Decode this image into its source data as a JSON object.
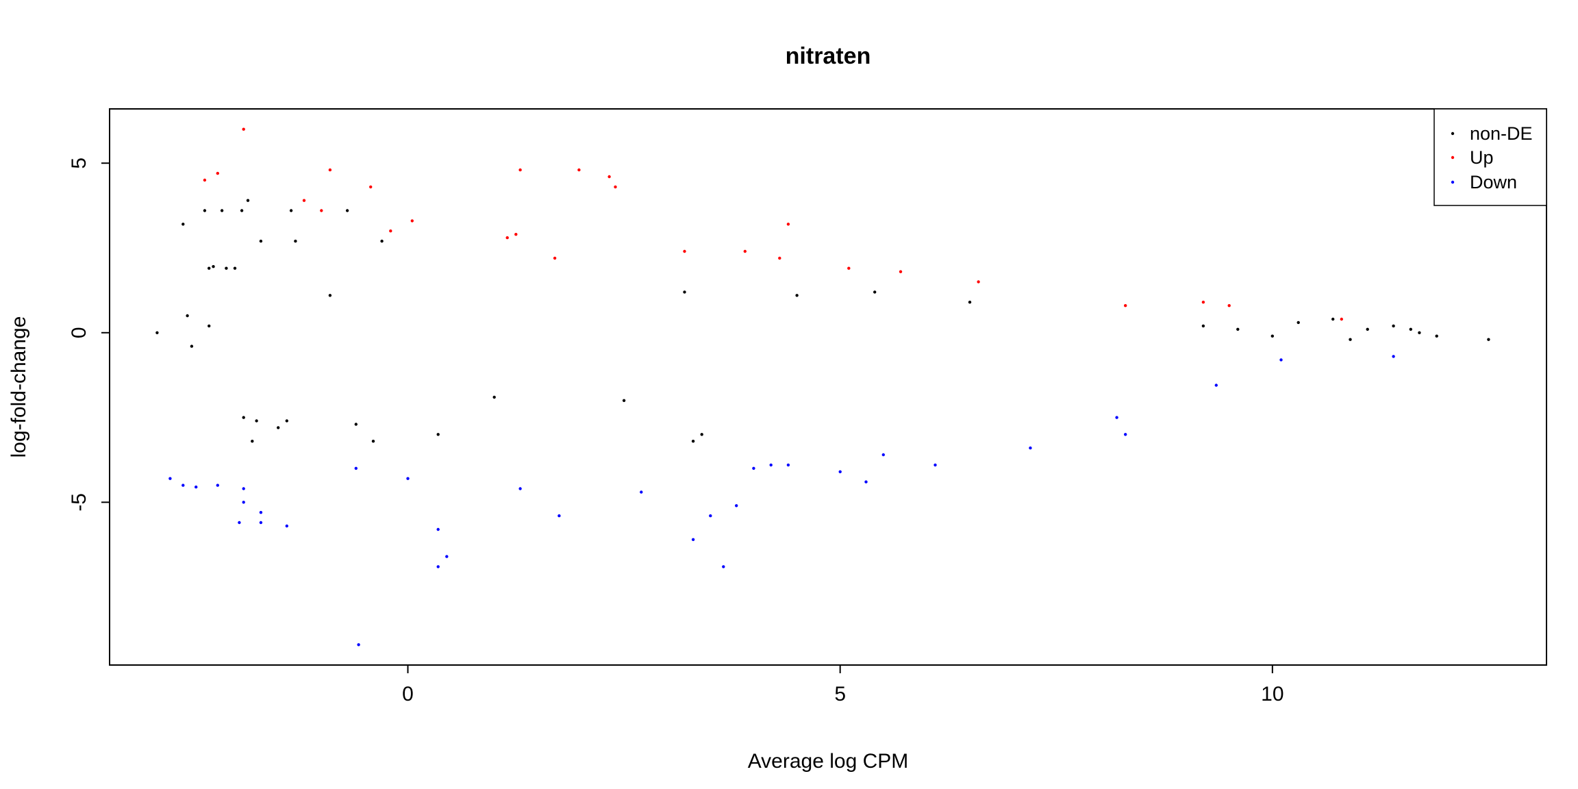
{
  "chart_data": {
    "type": "scatter",
    "title": "nitraten",
    "xlabel": "Average log CPM",
    "ylabel": "log-fold-change",
    "xlim": [
      -3.45,
      13.17
    ],
    "ylim": [
      -9.8,
      6.6
    ],
    "xticks": [
      0,
      5,
      10
    ],
    "yticks": [
      5,
      0,
      -5
    ],
    "xtick_labels": [
      "0",
      "5",
      "10"
    ],
    "ytick_labels": [
      "5",
      "0",
      "-5"
    ],
    "grid": false,
    "legend_position": "top-right",
    "series": [
      {
        "name": "non-DE",
        "color": "#000000",
        "points": [
          [
            -2.9,
            0.0
          ],
          [
            -2.6,
            3.2
          ],
          [
            -2.55,
            0.5
          ],
          [
            -2.5,
            -0.4
          ],
          [
            -2.3,
            0.2
          ],
          [
            -2.35,
            3.6
          ],
          [
            -2.3,
            1.9
          ],
          [
            -2.25,
            1.95
          ],
          [
            -2.15,
            3.6
          ],
          [
            -2.1,
            1.9
          ],
          [
            -2.0,
            1.9
          ],
          [
            -1.92,
            3.6
          ],
          [
            -1.85,
            3.9
          ],
          [
            -1.9,
            -2.5
          ],
          [
            -1.75,
            -2.6
          ],
          [
            -1.7,
            2.7
          ],
          [
            -1.8,
            -3.2
          ],
          [
            -1.5,
            -2.8
          ],
          [
            -1.35,
            3.6
          ],
          [
            -1.3,
            2.7
          ],
          [
            -1.4,
            -2.6
          ],
          [
            -0.9,
            1.1
          ],
          [
            -0.7,
            3.6
          ],
          [
            -0.6,
            -2.7
          ],
          [
            -0.4,
            -3.2
          ],
          [
            -0.3,
            2.7
          ],
          [
            0.35,
            -3.0
          ],
          [
            1.0,
            -1.9
          ],
          [
            2.5,
            -2.0
          ],
          [
            3.3,
            -3.2
          ],
          [
            3.4,
            -3.0
          ],
          [
            3.2,
            1.2
          ],
          [
            4.5,
            1.1
          ],
          [
            5.4,
            1.2
          ],
          [
            6.5,
            0.9
          ],
          [
            9.2,
            0.2
          ],
          [
            9.6,
            0.1
          ],
          [
            10.0,
            -0.1
          ],
          [
            10.3,
            0.3
          ],
          [
            10.7,
            0.4
          ],
          [
            10.9,
            -0.2
          ],
          [
            11.1,
            0.1
          ],
          [
            11.4,
            0.2
          ],
          [
            11.6,
            0.1
          ],
          [
            11.7,
            0.0
          ],
          [
            11.9,
            -0.1
          ],
          [
            12.5,
            -0.2
          ]
        ]
      },
      {
        "name": "Up",
        "color": "#ff0000",
        "points": [
          [
            -1.9,
            6.0
          ],
          [
            -2.35,
            4.5
          ],
          [
            -2.2,
            4.7
          ],
          [
            -0.9,
            4.8
          ],
          [
            -0.43,
            4.3
          ],
          [
            1.3,
            4.8
          ],
          [
            1.98,
            4.8
          ],
          [
            2.33,
            4.6
          ],
          [
            2.4,
            4.3
          ],
          [
            -1.2,
            3.9
          ],
          [
            -1.0,
            3.6
          ],
          [
            -0.2,
            3.0
          ],
          [
            0.05,
            3.3
          ],
          [
            4.4,
            3.2
          ],
          [
            1.15,
            2.8
          ],
          [
            1.25,
            2.9
          ],
          [
            3.2,
            2.4
          ],
          [
            3.9,
            2.4
          ],
          [
            4.3,
            2.2
          ],
          [
            1.7,
            2.2
          ],
          [
            5.1,
            1.9
          ],
          [
            5.7,
            1.8
          ],
          [
            6.6,
            1.5
          ],
          [
            8.3,
            0.8
          ],
          [
            9.2,
            0.9
          ],
          [
            9.5,
            0.8
          ],
          [
            10.8,
            0.4
          ]
        ]
      },
      {
        "name": "Down",
        "color": "#0000ff",
        "points": [
          [
            -0.57,
            -9.2
          ],
          [
            0.45,
            -6.6
          ],
          [
            0.35,
            -6.9
          ],
          [
            0.35,
            -5.8
          ],
          [
            3.65,
            -6.9
          ],
          [
            3.3,
            -6.1
          ],
          [
            -1.95,
            -5.6
          ],
          [
            -1.4,
            -5.7
          ],
          [
            -1.7,
            -5.6
          ],
          [
            -1.7,
            -5.3
          ],
          [
            -1.9,
            -5.0
          ],
          [
            1.75,
            -5.4
          ],
          [
            3.5,
            -5.4
          ],
          [
            3.8,
            -5.1
          ],
          [
            -1.9,
            -4.6
          ],
          [
            -2.6,
            -4.5
          ],
          [
            -2.45,
            -4.55
          ],
          [
            -2.2,
            -4.5
          ],
          [
            -2.75,
            -4.3
          ],
          [
            -0.6,
            -4.0
          ],
          [
            0.0,
            -4.3
          ],
          [
            1.3,
            -4.6
          ],
          [
            2.7,
            -4.7
          ],
          [
            4.0,
            -4.0
          ],
          [
            4.2,
            -3.9
          ],
          [
            4.4,
            -3.9
          ],
          [
            5.0,
            -4.1
          ],
          [
            5.3,
            -4.4
          ],
          [
            5.5,
            -3.6
          ],
          [
            6.1,
            -3.9
          ],
          [
            7.2,
            -3.4
          ],
          [
            8.3,
            -3.0
          ],
          [
            8.2,
            -2.5
          ],
          [
            10.1,
            -0.8
          ],
          [
            11.4,
            -0.7
          ],
          [
            9.35,
            -1.55
          ]
        ]
      }
    ]
  },
  "legend": {
    "entries": [
      {
        "label": "non-DE",
        "color": "#000000"
      },
      {
        "label": "Up",
        "color": "#ff0000"
      },
      {
        "label": "Down",
        "color": "#0000ff"
      }
    ]
  }
}
